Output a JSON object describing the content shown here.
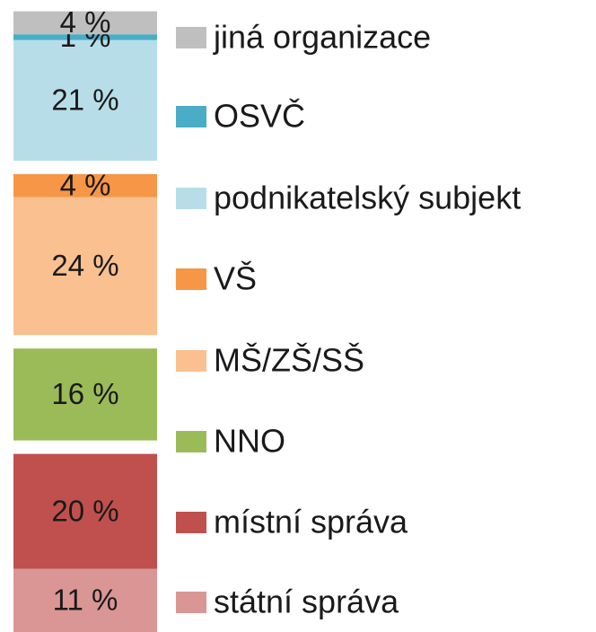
{
  "chart_data": {
    "type": "stacked-bar",
    "series": [
      {
        "name": "jiná organizace",
        "color": "#bfbfbf",
        "values": [
          4
        ],
        "value_labels": [
          "4 %"
        ]
      },
      {
        "name": "OSVČ",
        "color": "#4bacc6",
        "values": [
          1
        ],
        "value_labels": [
          "1 %"
        ]
      },
      {
        "name": "podnikatelský subjekt",
        "color": "#b7dee8",
        "values": [
          21
        ],
        "value_labels": [
          "21 %"
        ]
      },
      {
        "name": "VŠ",
        "color": "#f79646",
        "values": [
          4
        ],
        "value_labels": [
          "4 %"
        ]
      },
      {
        "name": "MŠ/ZŠ/SŠ",
        "color": "#fac090",
        "values": [
          24
        ],
        "value_labels": [
          "24 %"
        ]
      },
      {
        "name": "NNO",
        "color": "#9bbb59",
        "values": [
          16
        ],
        "value_labels": [
          "16 %"
        ]
      },
      {
        "name": "místní správa",
        "color": "#c0504d",
        "values": [
          20
        ],
        "value_labels": [
          "20 %"
        ]
      },
      {
        "name": "státní správa",
        "color": "#d99694",
        "values": [
          11
        ],
        "value_labels": [
          "11 %"
        ]
      }
    ]
  }
}
